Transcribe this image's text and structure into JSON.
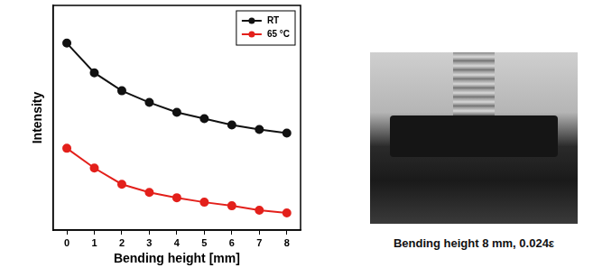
{
  "chart_data": {
    "type": "line",
    "xlabel": "Bending height [mm]",
    "ylabel": "Intensity",
    "x": [
      0,
      1,
      2,
      3,
      4,
      5,
      6,
      7,
      8
    ],
    "series": [
      {
        "name": "RT",
        "color": "#111111",
        "marker": "circle",
        "line_style": "solid",
        "values": [
          8.32,
          7.0,
          6.2,
          5.68,
          5.24,
          4.96,
          4.68,
          4.48,
          4.32
        ]
      },
      {
        "name": "65 °C",
        "color": "#e3201b",
        "marker": "circle",
        "line_style": "solid",
        "values": [
          3.64,
          2.76,
          2.04,
          1.68,
          1.44,
          1.24,
          1.08,
          0.88,
          0.76
        ]
      }
    ],
    "xlim": [
      -0.5,
      8.5
    ],
    "xticks": [
      0,
      1,
      2,
      3,
      4,
      5,
      6,
      7,
      8
    ],
    "ylim": [
      0,
      10
    ],
    "tick_labels": "x",
    "grid": false,
    "legend": "upper right"
  },
  "image": {
    "caption": "Bending height 8 mm, 0.024ε"
  }
}
